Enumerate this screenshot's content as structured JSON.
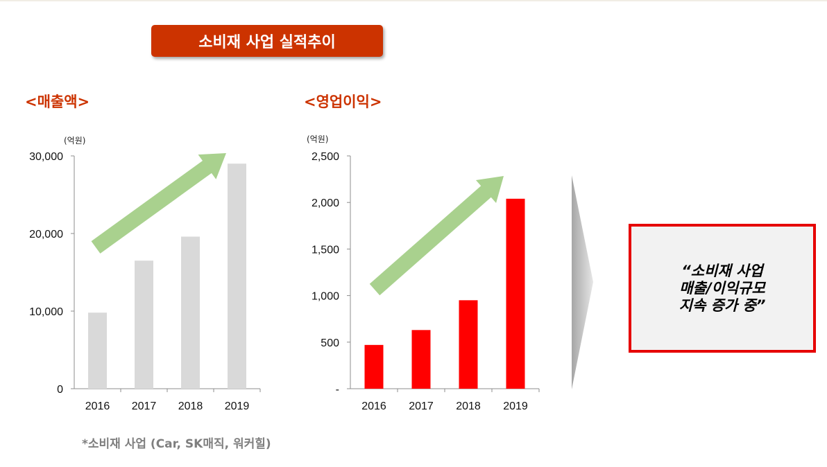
{
  "title": "소비재 사업 실적추이",
  "left_label": "<매출액>",
  "right_label": "<영업이익>",
  "callout": {
    "line1": "“소비재 사업",
    "line2": "매출/이익규모",
    "line3": "지속 증가 중”"
  },
  "footnote": "*소비재 사업 (Car, SK매직, 워커힐)",
  "colors": {
    "accent": "#cc3300",
    "revenue_bar": "#d9d9d9",
    "profit_bar": "#ff0000",
    "trend_arrow": "#a9d18e",
    "callout_border": "#e60000"
  },
  "chart_data": [
    {
      "type": "bar",
      "title": "<매출액>",
      "unit": "(억원)",
      "categories": [
        "2016",
        "2017",
        "2018",
        "2019"
      ],
      "values": [
        9800,
        16500,
        19600,
        29000
      ],
      "ylim": [
        0,
        30000
      ],
      "yticks": [
        0,
        10000,
        20000,
        30000
      ],
      "ytick_labels": [
        "0",
        "10,000",
        "20,000",
        "30,000"
      ],
      "grid": false
    },
    {
      "type": "bar",
      "title": "<영업이익>",
      "unit": "(억원)",
      "categories": [
        "2016",
        "2017",
        "2018",
        "2019"
      ],
      "values": [
        470,
        630,
        950,
        2040
      ],
      "ylim": [
        0,
        2500
      ],
      "yticks": [
        0,
        500,
        1000,
        1500,
        2000,
        2500
      ],
      "ytick_labels": [
        "-",
        "500",
        "1,000",
        "1,500",
        "2,000",
        "2,500"
      ],
      "grid": false
    }
  ]
}
